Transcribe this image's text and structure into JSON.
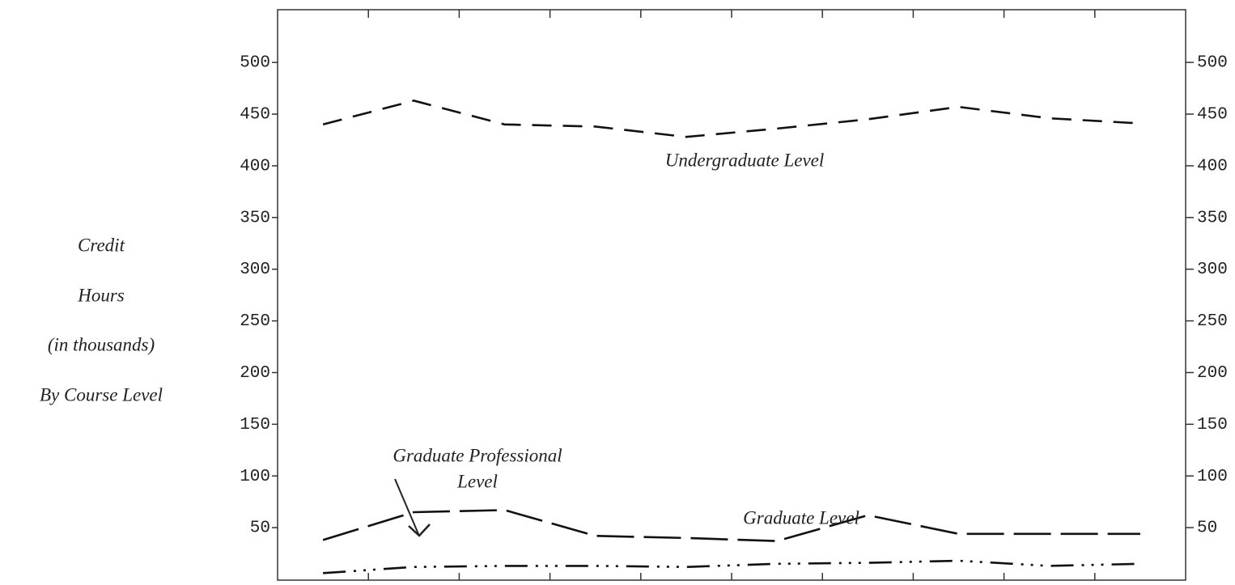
{
  "chart_data": {
    "type": "line",
    "y_title": [
      "Credit",
      "Hours",
      "(in thousands)",
      "By Course Level"
    ],
    "categories": [
      null,
      null,
      null,
      null,
      null,
      null,
      null,
      null,
      null,
      null
    ],
    "series": [
      {
        "color": "#111111",
        "dash": "short",
        "values": [
          440,
          463,
          440,
          438,
          428,
          436,
          445,
          457,
          446,
          441
        ]
      },
      {
        "color": "#111111",
        "dash": "long",
        "values": [
          38,
          65,
          67,
          42,
          40,
          37,
          62,
          44,
          44,
          44
        ]
      },
      {
        "color": "#111111",
        "dash": "dot",
        "values": [
          6,
          12,
          13,
          13,
          12,
          15,
          16,
          18,
          13,
          15
        ]
      }
    ],
    "annotations": [
      "Undergraduate Level",
      "Graduate Professional",
      "Level",
      "Graduate Level"
    ],
    "ylim": [
      0,
      551
    ],
    "yticks": [
      50,
      100,
      150,
      200,
      250,
      300,
      350,
      400,
      450,
      500
    ],
    "y2lim": [
      0,
      551
    ],
    "y2ticks": [
      50,
      100,
      150,
      200,
      250,
      300,
      350,
      400,
      450,
      500
    ],
    "grid": false
  }
}
